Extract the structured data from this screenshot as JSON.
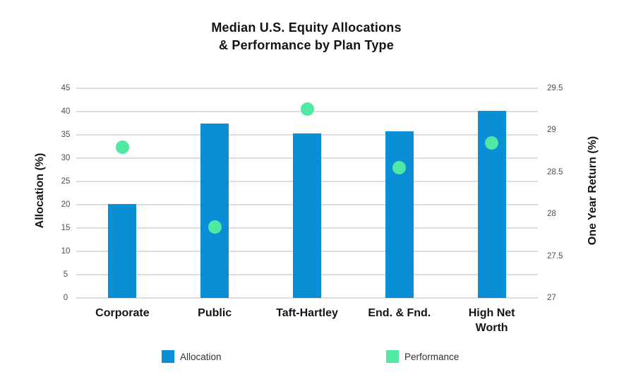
{
  "chart_data": {
    "type": "combo-bar-scatter-dual-axis",
    "title": "Median U.S. Equity Allocations & Performance by Plan Type",
    "title_lines": [
      "Median U.S. Equity Allocations",
      "& Performance by Plan Type"
    ],
    "categories": [
      "Corporate",
      "Public",
      "Taft-Hartley",
      "End. & Fnd.",
      "High Net Worth"
    ],
    "series": [
      {
        "name": "Allocation",
        "type": "bar",
        "axis": "left",
        "color": "#0a8ed5",
        "values": [
          20.2,
          37.5,
          35.3,
          35.8,
          40.1
        ]
      },
      {
        "name": "Performance",
        "type": "scatter",
        "axis": "right",
        "color": "#50e8a2",
        "values": [
          28.8,
          27.85,
          29.25,
          28.55,
          28.85
        ]
      }
    ],
    "left_axis": {
      "label": "Allocation (%)",
      "min": 0,
      "max": 45,
      "tick_step": 5,
      "tick_labels": [
        "45",
        "40",
        "35",
        "30",
        "25",
        "20",
        "15",
        "10",
        "5",
        "0"
      ]
    },
    "right_axis": {
      "label": "One Year Return (%)",
      "min": 27,
      "max": 29.5,
      "tick_step": 0.5,
      "tick_labels": [
        "29.5",
        "29",
        "28.5",
        "28",
        "27.5",
        "27"
      ]
    },
    "grid": {
      "horizontal": true,
      "vertical": false,
      "color": "#dedede"
    },
    "legend": {
      "position": "bottom",
      "items": [
        {
          "label": "Allocation",
          "color": "#0a8ed5"
        },
        {
          "label": "Performance",
          "color": "#50e8a2"
        }
      ]
    }
  }
}
